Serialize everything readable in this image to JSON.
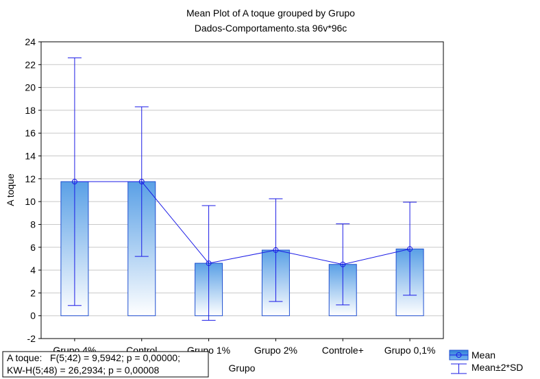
{
  "chart_data": {
    "type": "bar",
    "title": "Mean Plot of A toque grouped by  Grupo",
    "subtitle": "Dados-Comportamento.sta 96v*96c",
    "xlabel": "Grupo",
    "ylabel": "A toque",
    "ylim": [
      -2,
      24
    ],
    "yticks": [
      -2,
      0,
      2,
      4,
      6,
      8,
      10,
      12,
      14,
      16,
      18,
      20,
      22,
      24
    ],
    "grid": true,
    "legend_position": "bottom-right",
    "categories": [
      "Grupo 4%",
      "Control",
      "Grupo 1%",
      "Grupo 2%",
      "Controle+",
      "Grupo 0,1%"
    ],
    "series": [
      {
        "name": "Mean",
        "type": "bar+line",
        "values": [
          11.75,
          11.75,
          4.6,
          5.75,
          4.5,
          5.85
        ]
      },
      {
        "name": "Mean±2*SD",
        "type": "errorbar",
        "lower": [
          0.9,
          5.2,
          -0.4,
          1.25,
          0.95,
          1.8
        ],
        "upper": [
          22.6,
          18.3,
          9.65,
          10.25,
          8.05,
          9.95
        ]
      }
    ],
    "stats": {
      "line1": "A toque:   F(5;42) = 9,5942; p = 0,00000;",
      "line2": "KW-H(5;48) = 26,2934; p = 0,00008"
    },
    "colors": {
      "bar_top": "#5aa0e6",
      "bar_bottom": "#ffffff",
      "bar_border": "#1f4fd0",
      "line": "#1a1ae6",
      "grid": "#c8c8c8",
      "legend_mean_fill": "#3a8ae0"
    }
  }
}
